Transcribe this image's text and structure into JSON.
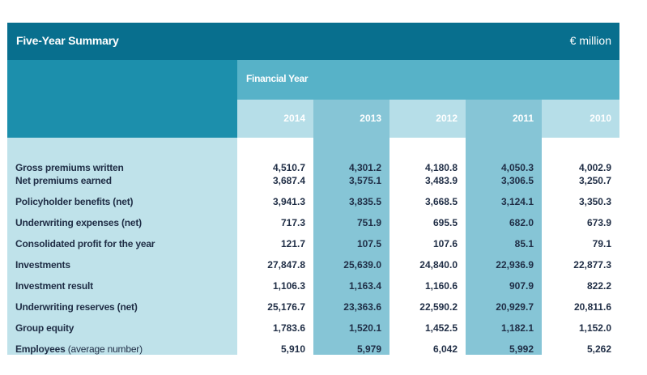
{
  "header": {
    "title": "Five-Year Summary",
    "unit": "€ million",
    "subheader": "Financial Year"
  },
  "years": [
    "2014",
    "2013",
    "2012",
    "2011",
    "2010"
  ],
  "rows": [
    {
      "label": "Gross premiums written",
      "values": [
        "4,510.7",
        "4,301.2",
        "4,180.8",
        "4,050.3",
        "4,002.9"
      ]
    },
    {
      "label": "Net premiums earned",
      "values": [
        "3,687.4",
        "3,575.1",
        "3,483.9",
        "3,306.5",
        "3,250.7"
      ]
    },
    {
      "label": "Policyholder benefits (net)",
      "values": [
        "3,941.3",
        "3,835.5",
        "3,668.5",
        "3,124.1",
        "3,350.3"
      ]
    },
    {
      "label": "Underwriting expenses (net)",
      "values": [
        "717.3",
        "751.9",
        "695.5",
        "682.0",
        "673.9"
      ]
    },
    {
      "label": "Consolidated profit for the year",
      "values": [
        "121.7",
        "107.5",
        "107.6",
        "85.1",
        "79.1"
      ]
    },
    {
      "label": "Investments",
      "values": [
        "27,847.8",
        "25,639.0",
        "24,840.0",
        "22,936.9",
        "22,877.3"
      ]
    },
    {
      "label": "Investment result",
      "values": [
        "1,106.3",
        "1,163.4",
        "1,160.6",
        "907.9",
        "822.2"
      ]
    },
    {
      "label": "Underwriting reserves (net)",
      "values": [
        "25,176.7",
        "23,363.6",
        "22,590.2",
        "20,929.7",
        "20,811.6"
      ]
    },
    {
      "label": "Group equity",
      "values": [
        "1,783.6",
        "1,520.1",
        "1,452.5",
        "1,182.1",
        "1,152.0"
      ]
    },
    {
      "label": "Employees",
      "label_suffix": "(average number)",
      "values": [
        "5,910",
        "5,979",
        "6,042",
        "5,992",
        "5,262"
      ]
    }
  ],
  "colors": {
    "title_band": "#086f8e",
    "mid_band": "#1c8fac",
    "fy_cell": "#57b2c8",
    "year_light": "#b6dee8",
    "year_dark": "#86c5d6",
    "body_light": "#bfe2ea",
    "col_white": "#ffffff",
    "col_mid": "#86c5d6"
  }
}
